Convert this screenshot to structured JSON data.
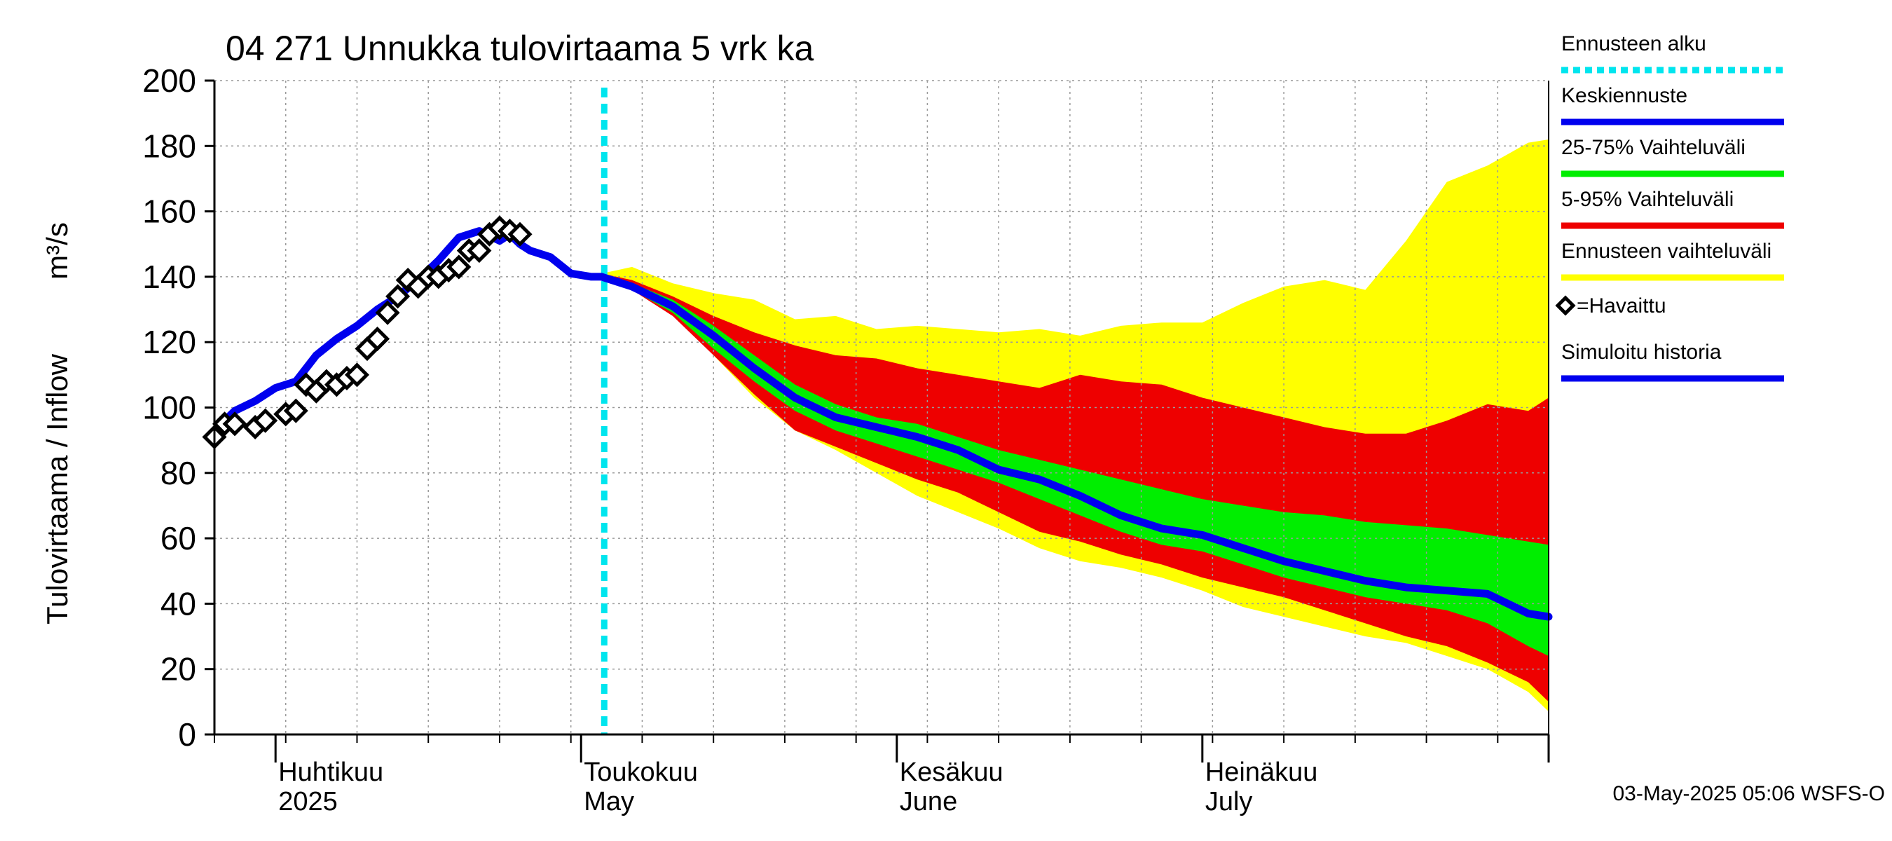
{
  "chart_data": {
    "type": "line",
    "title": "04 271 Unnukka tulovirtaama 5 vrk ka",
    "ylabel": "Tulovirtaama / Inflow",
    "yunit": "m³/s",
    "ylim": [
      0,
      200
    ],
    "yticks": [
      0,
      20,
      40,
      60,
      80,
      100,
      120,
      140,
      160,
      180,
      200
    ],
    "xlim": [
      "2025-03-26",
      "2025-08-04"
    ],
    "grid": true,
    "forecast_start": "2025-05-03",
    "month_labels": [
      {
        "date": "2025-04-01",
        "fi": "Huhtikuu",
        "en": "2025"
      },
      {
        "date": "2025-05-01",
        "fi": "Toukokuu",
        "en": "May"
      },
      {
        "date": "2025-06-01",
        "fi": "Kesäkuu",
        "en": "June"
      },
      {
        "date": "2025-07-01",
        "fi": "Heinäkuu",
        "en": "July"
      }
    ],
    "legend": [
      {
        "label": "Ennusteen alku",
        "color": "#00e5ee",
        "style": "dotted"
      },
      {
        "label": "Keskiennuste",
        "color": "#0000ee",
        "style": "line"
      },
      {
        "label": "25-75% Vaihteluväli",
        "color": "#00ee00",
        "style": "line"
      },
      {
        "label": "5-95% Vaihteluväli",
        "color": "#ee0000",
        "style": "line"
      },
      {
        "label": "Ennusteen vaihteluväli",
        "color": "#ffff00",
        "style": "line"
      },
      {
        "label": "=Havaittu",
        "color": "#000000",
        "style": "marker"
      },
      {
        "label": "Simuloitu historia",
        "color": "#0000ee",
        "style": "line"
      }
    ],
    "colors": {
      "simulated": "#0000ee",
      "median": "#0000ee",
      "band_25_75": "#00ee00",
      "band_5_95": "#ee0000",
      "band_full": "#ffff00",
      "forecast_start": "#00e5ee",
      "observed": "#000000",
      "grid": "#999999"
    },
    "series": [
      {
        "name": "Simuloitu historia",
        "x": [
          "2025-03-26",
          "2025-03-28",
          "2025-03-30",
          "2025-04-01",
          "2025-04-03",
          "2025-04-05",
          "2025-04-07",
          "2025-04-09",
          "2025-04-11",
          "2025-04-13",
          "2025-04-15",
          "2025-04-17",
          "2025-04-19",
          "2025-04-21",
          "2025-04-23",
          "2025-04-24",
          "2025-04-25",
          "2025-04-26",
          "2025-04-28",
          "2025-04-30",
          "2025-05-02",
          "2025-05-03"
        ],
        "values": [
          93,
          99,
          102,
          106,
          108,
          116,
          121,
          125,
          130,
          134,
          139,
          145,
          152,
          154,
          151,
          153,
          150,
          148,
          146,
          141,
          140,
          140
        ]
      },
      {
        "name": "Havaittu",
        "x": [
          "2025-03-26",
          "2025-03-27",
          "2025-03-28",
          "2025-03-30",
          "2025-03-31",
          "2025-04-02",
          "2025-04-03",
          "2025-04-04",
          "2025-04-05",
          "2025-04-06",
          "2025-04-07",
          "2025-04-08",
          "2025-04-09",
          "2025-04-10",
          "2025-04-11",
          "2025-04-12",
          "2025-04-13",
          "2025-04-14",
          "2025-04-15",
          "2025-04-16",
          "2025-04-17",
          "2025-04-18",
          "2025-04-19",
          "2025-04-20",
          "2025-04-21",
          "2025-04-22",
          "2025-04-23",
          "2025-04-24",
          "2025-04-25"
        ],
        "values": [
          91,
          95,
          95,
          94,
          96,
          98,
          99,
          107,
          105,
          108,
          107,
          109,
          110,
          118,
          121,
          129,
          134,
          139,
          137,
          140,
          140,
          142,
          143,
          148,
          148,
          153,
          155,
          154,
          153
        ]
      },
      {
        "name": "Keskiennuste",
        "x": [
          "2025-05-03",
          "2025-05-06",
          "2025-05-10",
          "2025-05-14",
          "2025-05-18",
          "2025-05-22",
          "2025-05-26",
          "2025-05-30",
          "2025-06-03",
          "2025-06-07",
          "2025-06-11",
          "2025-06-15",
          "2025-06-19",
          "2025-06-23",
          "2025-06-27",
          "2025-07-01",
          "2025-07-05",
          "2025-07-09",
          "2025-07-13",
          "2025-07-17",
          "2025-07-21",
          "2025-07-25",
          "2025-07-29",
          "2025-08-02",
          "2025-08-04"
        ],
        "values": [
          140,
          137,
          131,
          122,
          112,
          103,
          97,
          94,
          91,
          87,
          81,
          78,
          73,
          67,
          63,
          61,
          57,
          53,
          50,
          47,
          45,
          44,
          43,
          37,
          36
        ]
      }
    ],
    "bands": [
      {
        "name": "Ennusteen vaihteluväli",
        "x": [
          "2025-05-03",
          "2025-05-06",
          "2025-05-10",
          "2025-05-14",
          "2025-05-18",
          "2025-05-22",
          "2025-05-26",
          "2025-05-30",
          "2025-06-03",
          "2025-06-07",
          "2025-06-11",
          "2025-06-15",
          "2025-06-19",
          "2025-06-23",
          "2025-06-27",
          "2025-07-01",
          "2025-07-05",
          "2025-07-09",
          "2025-07-13",
          "2025-07-17",
          "2025-07-21",
          "2025-07-25",
          "2025-07-29",
          "2025-08-02",
          "2025-08-04"
        ],
        "upper": [
          141,
          143,
          138,
          135,
          133,
          127,
          128,
          124,
          125,
          124,
          123,
          124,
          122,
          125,
          126,
          126,
          132,
          137,
          139,
          136,
          151,
          169,
          174,
          181,
          182
        ],
        "lower": [
          140,
          137,
          129,
          116,
          103,
          93,
          87,
          80,
          73,
          68,
          63,
          57,
          53,
          51,
          48,
          44,
          39,
          36,
          33,
          30,
          28,
          24,
          20,
          13,
          7
        ]
      },
      {
        "name": "5-95% Vaihteluväli",
        "x": [
          "2025-05-03",
          "2025-05-06",
          "2025-05-10",
          "2025-05-14",
          "2025-05-18",
          "2025-05-22",
          "2025-05-26",
          "2025-05-30",
          "2025-06-03",
          "2025-06-07",
          "2025-06-11",
          "2025-06-15",
          "2025-06-19",
          "2025-06-23",
          "2025-06-27",
          "2025-07-01",
          "2025-07-05",
          "2025-07-09",
          "2025-07-13",
          "2025-07-17",
          "2025-07-21",
          "2025-07-25",
          "2025-07-29",
          "2025-08-02",
          "2025-08-04"
        ],
        "upper": [
          141,
          139,
          134,
          128,
          123,
          119,
          116,
          115,
          112,
          110,
          108,
          106,
          110,
          108,
          107,
          103,
          100,
          97,
          94,
          92,
          92,
          96,
          101,
          99,
          103
        ],
        "lower": [
          140,
          136,
          128,
          116,
          104,
          93,
          88,
          83,
          78,
          74,
          68,
          62,
          59,
          55,
          52,
          48,
          45,
          42,
          38,
          34,
          30,
          27,
          22,
          16,
          10
        ]
      },
      {
        "name": "25-75% Vaihteluväli",
        "x": [
          "2025-05-03",
          "2025-05-06",
          "2025-05-10",
          "2025-05-14",
          "2025-05-18",
          "2025-05-22",
          "2025-05-26",
          "2025-05-30",
          "2025-06-03",
          "2025-06-07",
          "2025-06-11",
          "2025-06-15",
          "2025-06-19",
          "2025-06-23",
          "2025-06-27",
          "2025-07-01",
          "2025-07-05",
          "2025-07-09",
          "2025-07-13",
          "2025-07-17",
          "2025-07-21",
          "2025-07-25",
          "2025-07-29",
          "2025-08-02",
          "2025-08-04"
        ],
        "upper": [
          141,
          138,
          133,
          125,
          116,
          107,
          101,
          97,
          95,
          91,
          87,
          84,
          81,
          78,
          75,
          72,
          70,
          68,
          67,
          65,
          64,
          63,
          61,
          59,
          58
        ],
        "lower": [
          140,
          136,
          129,
          118,
          108,
          99,
          93,
          89,
          85,
          81,
          77,
          72,
          67,
          62,
          58,
          56,
          52,
          48,
          45,
          42,
          40,
          38,
          34,
          27,
          24
        ]
      }
    ]
  },
  "footer": {
    "timestamp": "03-May-2025 05:06 WSFS-O"
  }
}
